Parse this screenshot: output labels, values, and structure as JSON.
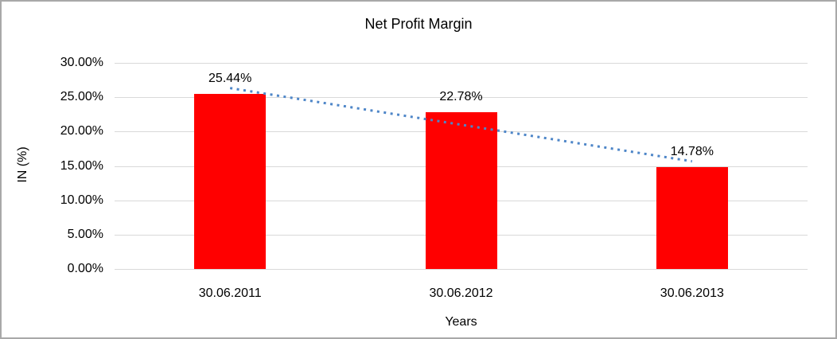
{
  "chart_data": {
    "type": "bar",
    "title": "Net Profit Margin",
    "xlabel": "Years",
    "ylabel": "IN (%)",
    "categories": [
      "30.06.2011",
      "30.06.2012",
      "30.06.2013"
    ],
    "values": [
      25.44,
      22.78,
      14.78
    ],
    "data_labels": [
      "25.44%",
      "22.78%",
      "14.78%"
    ],
    "ylim": [
      0,
      30
    ],
    "ytick_step": 5,
    "ytick_labels": [
      "0.00%",
      "5.00%",
      "10.00%",
      "15.00%",
      "20.00%",
      "25.00%",
      "30.00%"
    ],
    "grid": true,
    "legend": "none",
    "bar_color": "#ff0000",
    "gridline_color": "#d9d9d9",
    "frame_border_color": "#a9a9a9",
    "text_color": "#000000",
    "trendline": {
      "type": "linear",
      "style": "dotted",
      "color": "#4e86c8"
    }
  }
}
